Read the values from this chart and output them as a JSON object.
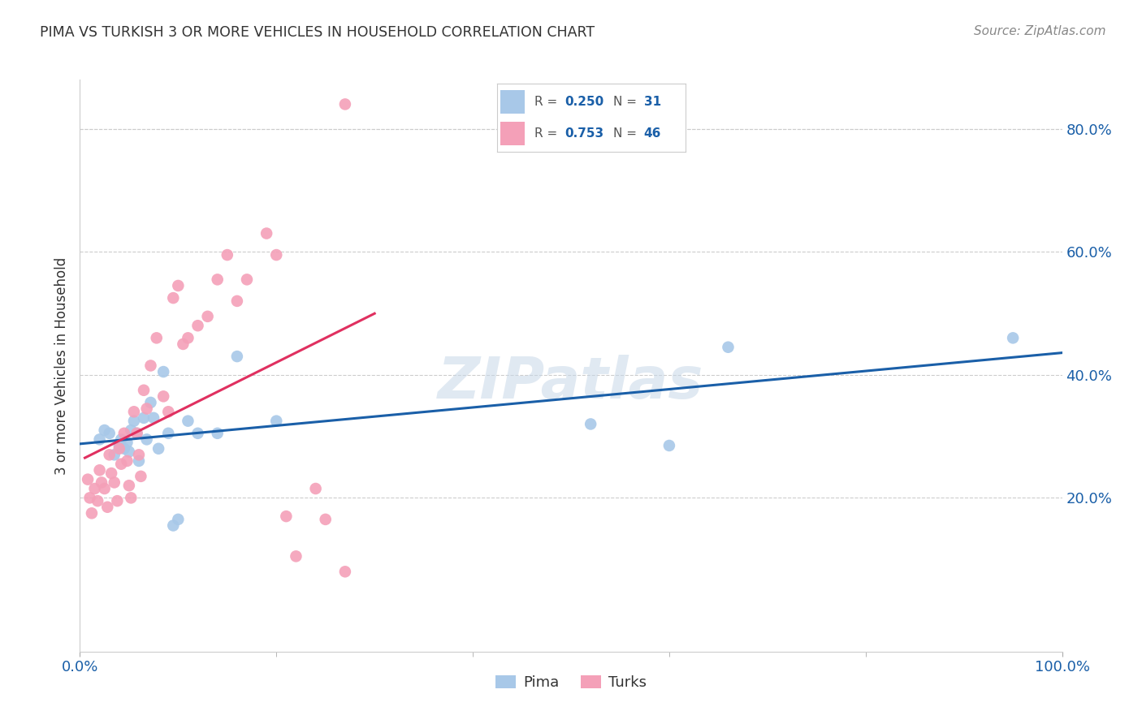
{
  "title": "PIMA VS TURKISH 3 OR MORE VEHICLES IN HOUSEHOLD CORRELATION CHART",
  "source": "Source: ZipAtlas.com",
  "ylabel": "3 or more Vehicles in Household",
  "xlim": [
    0.0,
    1.0
  ],
  "ylim": [
    -0.05,
    0.88
  ],
  "ytick_vals": [
    0.2,
    0.4,
    0.6,
    0.8
  ],
  "ytick_labels": [
    "20.0%",
    "40.0%",
    "60.0%",
    "80.0%"
  ],
  "legend_r_pima": "0.250",
  "legend_n_pima": "31",
  "legend_r_turks": "0.753",
  "legend_n_turks": "46",
  "pima_color": "#a8c8e8",
  "turks_color": "#f4a0b8",
  "pima_line_color": "#1a5fa8",
  "turks_line_color": "#e03060",
  "background_color": "#ffffff",
  "watermark": "ZIPatlas",
  "pima_x": [
    0.02,
    0.025,
    0.03,
    0.035,
    0.04,
    0.042,
    0.045,
    0.048,
    0.05,
    0.052,
    0.055,
    0.058,
    0.06,
    0.065,
    0.068,
    0.072,
    0.075,
    0.08,
    0.085,
    0.09,
    0.095,
    0.1,
    0.11,
    0.12,
    0.14,
    0.16,
    0.2,
    0.52,
    0.6,
    0.66,
    0.95
  ],
  "pima_y": [
    0.295,
    0.31,
    0.305,
    0.27,
    0.285,
    0.295,
    0.28,
    0.29,
    0.275,
    0.31,
    0.325,
    0.305,
    0.26,
    0.33,
    0.295,
    0.355,
    0.33,
    0.28,
    0.405,
    0.305,
    0.155,
    0.165,
    0.325,
    0.305,
    0.305,
    0.43,
    0.325,
    0.32,
    0.285,
    0.445,
    0.46
  ],
  "turks_x": [
    0.008,
    0.01,
    0.012,
    0.015,
    0.018,
    0.02,
    0.022,
    0.025,
    0.028,
    0.03,
    0.032,
    0.035,
    0.038,
    0.04,
    0.042,
    0.045,
    0.048,
    0.05,
    0.052,
    0.055,
    0.058,
    0.06,
    0.062,
    0.065,
    0.068,
    0.072,
    0.078,
    0.085,
    0.09,
    0.095,
    0.1,
    0.105,
    0.11,
    0.12,
    0.13,
    0.14,
    0.15,
    0.16,
    0.17,
    0.19,
    0.2,
    0.21,
    0.22,
    0.24,
    0.25,
    0.27
  ],
  "turks_y": [
    0.23,
    0.2,
    0.175,
    0.215,
    0.195,
    0.245,
    0.225,
    0.215,
    0.185,
    0.27,
    0.24,
    0.225,
    0.195,
    0.28,
    0.255,
    0.305,
    0.26,
    0.22,
    0.2,
    0.34,
    0.305,
    0.27,
    0.235,
    0.375,
    0.345,
    0.415,
    0.46,
    0.365,
    0.34,
    0.525,
    0.545,
    0.45,
    0.46,
    0.48,
    0.495,
    0.555,
    0.595,
    0.52,
    0.555,
    0.63,
    0.595,
    0.17,
    0.105,
    0.215,
    0.165,
    0.08
  ],
  "turks_outlier_x": [
    0.27
  ],
  "turks_outlier_y": [
    0.84
  ],
  "pima_line_x": [
    0.0,
    1.0
  ],
  "turks_line_start_x": 0.005,
  "turks_line_end_x": 0.3
}
